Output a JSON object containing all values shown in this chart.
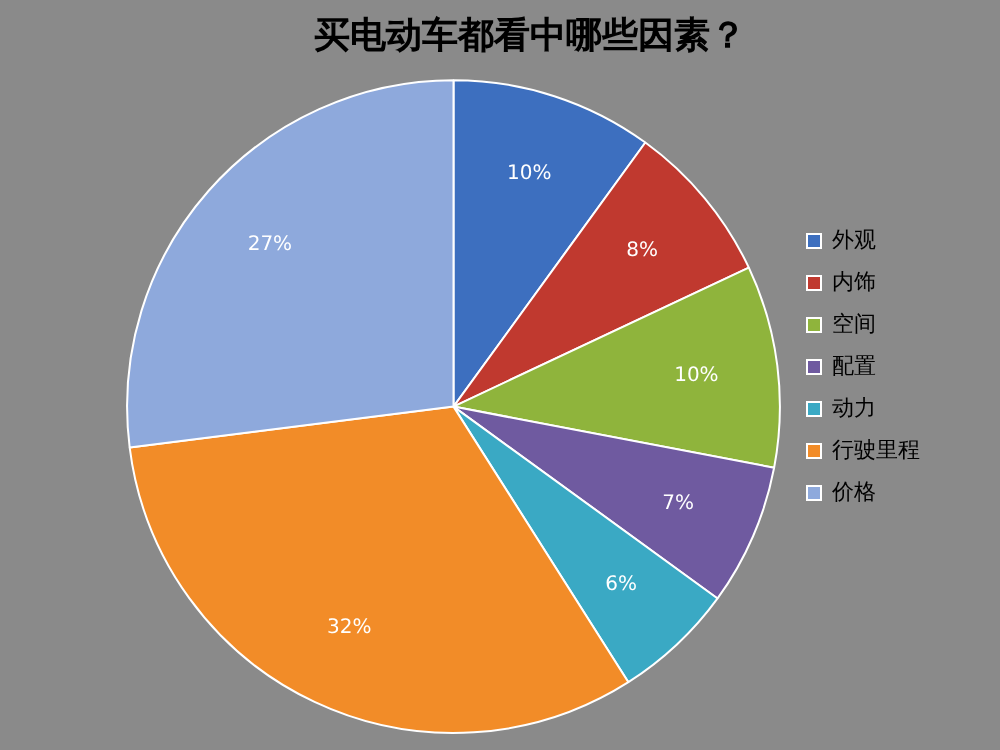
{
  "chart_data": {
    "type": "pie",
    "title": "买电动车都看中哪些因素？",
    "categories": [
      "外观",
      "内饰",
      "空间",
      "配置",
      "动力",
      "行驶里程",
      "价格"
    ],
    "values": [
      10,
      8,
      10,
      7,
      6,
      32,
      27
    ],
    "value_labels": [
      "10%",
      "8%",
      "10%",
      "7%",
      "6%",
      "32%",
      "27%"
    ],
    "colors": [
      "#3d6fbf",
      "#c0392f",
      "#8fb43c",
      "#6f5aa0",
      "#3aa9c4",
      "#f28c28",
      "#8ea9dc"
    ],
    "legend": "right"
  }
}
